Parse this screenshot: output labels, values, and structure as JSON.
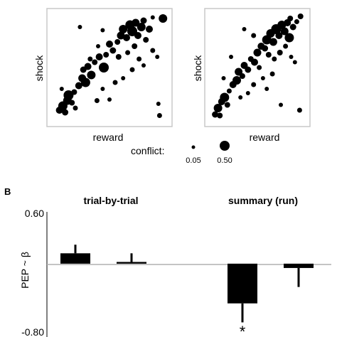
{
  "panel_a": {
    "scatters": [
      {
        "xlabel": "reward",
        "ylabel": "shock"
      },
      {
        "xlabel": "reward",
        "ylabel": "shock"
      }
    ],
    "legend": {
      "label": "conflict:",
      "small_value": "0.05",
      "large_value": "0.50"
    }
  },
  "panel_b": {
    "letter": "B",
    "ylabel": "PEP ~ β",
    "tick_top": "0.60",
    "tick_bottom": "-0.80",
    "group_titles": [
      "trial-by-trial",
      "summary (run)"
    ],
    "significance_marker": "*"
  },
  "chart_data": [
    {
      "type": "scatter",
      "xlabel": "reward",
      "ylabel": "shock",
      "xlim": [
        0,
        1
      ],
      "ylim": [
        0,
        1
      ],
      "size_variable": "conflict",
      "points": [
        {
          "x": 0.06,
          "y": 0.1,
          "s": 0.3
        },
        {
          "x": 0.09,
          "y": 0.14,
          "s": 0.45
        },
        {
          "x": 0.11,
          "y": 0.08,
          "s": 0.25
        },
        {
          "x": 0.13,
          "y": 0.19,
          "s": 0.4
        },
        {
          "x": 0.14,
          "y": 0.24,
          "s": 0.5
        },
        {
          "x": 0.17,
          "y": 0.17,
          "s": 0.2
        },
        {
          "x": 0.2,
          "y": 0.12,
          "s": 0.15
        },
        {
          "x": 0.08,
          "y": 0.3,
          "s": 0.1
        },
        {
          "x": 0.19,
          "y": 0.27,
          "s": 0.2
        },
        {
          "x": 0.23,
          "y": 0.33,
          "s": 0.3
        },
        {
          "x": 0.26,
          "y": 0.4,
          "s": 0.35
        },
        {
          "x": 0.29,
          "y": 0.36,
          "s": 0.45
        },
        {
          "x": 0.27,
          "y": 0.48,
          "s": 0.25
        },
        {
          "x": 0.31,
          "y": 0.51,
          "s": 0.3
        },
        {
          "x": 0.34,
          "y": 0.43,
          "s": 0.4
        },
        {
          "x": 0.37,
          "y": 0.55,
          "s": 0.2
        },
        {
          "x": 0.33,
          "y": 0.58,
          "s": 0.15
        },
        {
          "x": 0.41,
          "y": 0.6,
          "s": 0.3
        },
        {
          "x": 0.45,
          "y": 0.5,
          "s": 0.5
        },
        {
          "x": 0.47,
          "y": 0.62,
          "s": 0.2
        },
        {
          "x": 0.4,
          "y": 0.7,
          "s": 0.1
        },
        {
          "x": 0.5,
          "y": 0.72,
          "s": 0.3
        },
        {
          "x": 0.53,
          "y": 0.66,
          "s": 0.25
        },
        {
          "x": 0.57,
          "y": 0.74,
          "s": 0.2
        },
        {
          "x": 0.6,
          "y": 0.8,
          "s": 0.35
        },
        {
          "x": 0.62,
          "y": 0.86,
          "s": 0.4
        },
        {
          "x": 0.65,
          "y": 0.78,
          "s": 0.3
        },
        {
          "x": 0.68,
          "y": 0.9,
          "s": 0.45
        },
        {
          "x": 0.7,
          "y": 0.84,
          "s": 0.5
        },
        {
          "x": 0.73,
          "y": 0.92,
          "s": 0.35
        },
        {
          "x": 0.75,
          "y": 0.8,
          "s": 0.3
        },
        {
          "x": 0.78,
          "y": 0.88,
          "s": 0.4
        },
        {
          "x": 0.8,
          "y": 0.94,
          "s": 0.25
        },
        {
          "x": 0.82,
          "y": 0.76,
          "s": 0.2
        },
        {
          "x": 0.85,
          "y": 0.86,
          "s": 0.3
        },
        {
          "x": 0.72,
          "y": 0.7,
          "s": 0.2
        },
        {
          "x": 0.66,
          "y": 0.64,
          "s": 0.15
        },
        {
          "x": 0.58,
          "y": 0.6,
          "s": 0.2
        },
        {
          "x": 0.88,
          "y": 0.66,
          "s": 0.15
        },
        {
          "x": 0.92,
          "y": 0.6,
          "s": 0.1
        },
        {
          "x": 0.76,
          "y": 0.58,
          "s": 0.15
        },
        {
          "x": 0.8,
          "y": 0.52,
          "s": 0.1
        },
        {
          "x": 0.55,
          "y": 0.36,
          "s": 0.15
        },
        {
          "x": 0.62,
          "y": 0.4,
          "s": 0.1
        },
        {
          "x": 0.7,
          "y": 0.48,
          "s": 0.15
        },
        {
          "x": 0.44,
          "y": 0.3,
          "s": 0.1
        },
        {
          "x": 0.5,
          "y": 0.2,
          "s": 0.1
        },
        {
          "x": 0.39,
          "y": 0.19,
          "s": 0.15
        },
        {
          "x": 0.97,
          "y": 0.96,
          "s": 0.4
        },
        {
          "x": 0.88,
          "y": 0.97,
          "s": 0.1
        },
        {
          "x": 0.24,
          "y": 0.88,
          "s": 0.1
        },
        {
          "x": 0.44,
          "y": 0.85,
          "s": 0.1
        },
        {
          "x": 0.93,
          "y": 0.16,
          "s": 0.1
        },
        {
          "x": 0.94,
          "y": 0.05,
          "s": 0.15
        }
      ]
    },
    {
      "type": "scatter",
      "xlabel": "reward",
      "ylabel": "shock",
      "xlim": [
        0,
        1
      ],
      "ylim": [
        0,
        1
      ],
      "size_variable": "conflict",
      "points": [
        {
          "x": 0.05,
          "y": 0.06,
          "s": 0.25
        },
        {
          "x": 0.08,
          "y": 0.12,
          "s": 0.4
        },
        {
          "x": 0.1,
          "y": 0.05,
          "s": 0.2
        },
        {
          "x": 0.12,
          "y": 0.18,
          "s": 0.3
        },
        {
          "x": 0.15,
          "y": 0.22,
          "s": 0.45
        },
        {
          "x": 0.18,
          "y": 0.15,
          "s": 0.2
        },
        {
          "x": 0.2,
          "y": 0.28,
          "s": 0.15
        },
        {
          "x": 0.24,
          "y": 0.34,
          "s": 0.3
        },
        {
          "x": 0.28,
          "y": 0.38,
          "s": 0.4
        },
        {
          "x": 0.3,
          "y": 0.46,
          "s": 0.35
        },
        {
          "x": 0.34,
          "y": 0.42,
          "s": 0.2
        },
        {
          "x": 0.36,
          "y": 0.52,
          "s": 0.3
        },
        {
          "x": 0.4,
          "y": 0.48,
          "s": 0.25
        },
        {
          "x": 0.43,
          "y": 0.58,
          "s": 0.2
        },
        {
          "x": 0.47,
          "y": 0.55,
          "s": 0.3
        },
        {
          "x": 0.5,
          "y": 0.64,
          "s": 0.35
        },
        {
          "x": 0.54,
          "y": 0.7,
          "s": 0.3
        },
        {
          "x": 0.58,
          "y": 0.68,
          "s": 0.25
        },
        {
          "x": 0.6,
          "y": 0.76,
          "s": 0.45
        },
        {
          "x": 0.64,
          "y": 0.82,
          "s": 0.4
        },
        {
          "x": 0.67,
          "y": 0.74,
          "s": 0.35
        },
        {
          "x": 0.7,
          "y": 0.86,
          "s": 0.5
        },
        {
          "x": 0.73,
          "y": 0.8,
          "s": 0.3
        },
        {
          "x": 0.76,
          "y": 0.9,
          "s": 0.4
        },
        {
          "x": 0.79,
          "y": 0.84,
          "s": 0.35
        },
        {
          "x": 0.82,
          "y": 0.92,
          "s": 0.3
        },
        {
          "x": 0.85,
          "y": 0.96,
          "s": 0.2
        },
        {
          "x": 0.88,
          "y": 0.88,
          "s": 0.25
        },
        {
          "x": 0.92,
          "y": 0.93,
          "s": 0.15
        },
        {
          "x": 0.96,
          "y": 0.98,
          "s": 0.2
        },
        {
          "x": 0.62,
          "y": 0.62,
          "s": 0.2
        },
        {
          "x": 0.68,
          "y": 0.58,
          "s": 0.15
        },
        {
          "x": 0.74,
          "y": 0.64,
          "s": 0.2
        },
        {
          "x": 0.52,
          "y": 0.5,
          "s": 0.15
        },
        {
          "x": 0.56,
          "y": 0.4,
          "s": 0.1
        },
        {
          "x": 0.46,
          "y": 0.34,
          "s": 0.15
        },
        {
          "x": 0.4,
          "y": 0.26,
          "s": 0.1
        },
        {
          "x": 0.32,
          "y": 0.22,
          "s": 0.1
        },
        {
          "x": 0.8,
          "y": 0.7,
          "s": 0.15
        },
        {
          "x": 0.86,
          "y": 0.6,
          "s": 0.1
        },
        {
          "x": 0.9,
          "y": 0.55,
          "s": 0.1
        },
        {
          "x": 0.6,
          "y": 0.3,
          "s": 0.1
        },
        {
          "x": 0.22,
          "y": 0.6,
          "s": 0.1
        },
        {
          "x": 0.46,
          "y": 0.8,
          "s": 0.15
        },
        {
          "x": 0.36,
          "y": 0.86,
          "s": 0.1
        },
        {
          "x": 0.95,
          "y": 0.1,
          "s": 0.15
        },
        {
          "x": 0.75,
          "y": 0.15,
          "s": 0.1
        },
        {
          "x": 0.66,
          "y": 0.44,
          "s": 0.15
        },
        {
          "x": 0.14,
          "y": 0.4,
          "s": 0.1
        },
        {
          "x": 0.84,
          "y": 0.78,
          "s": 0.45
        }
      ]
    },
    {
      "type": "bar",
      "ylabel": "PEP ~ β",
      "ylim": [
        -0.8,
        0.6
      ],
      "yticks": [
        0.6,
        -0.8
      ],
      "groups": [
        "trial-by-trial",
        "summary (run)"
      ],
      "bars": [
        {
          "group": 0,
          "value": 0.12,
          "error": 0.1
        },
        {
          "group": 0,
          "value": 0.02,
          "error": 0.1
        },
        {
          "group": 1,
          "value": -0.46,
          "error": 0.22,
          "significant": true
        },
        {
          "group": 1,
          "value": -0.05,
          "error": 0.22
        }
      ]
    }
  ]
}
